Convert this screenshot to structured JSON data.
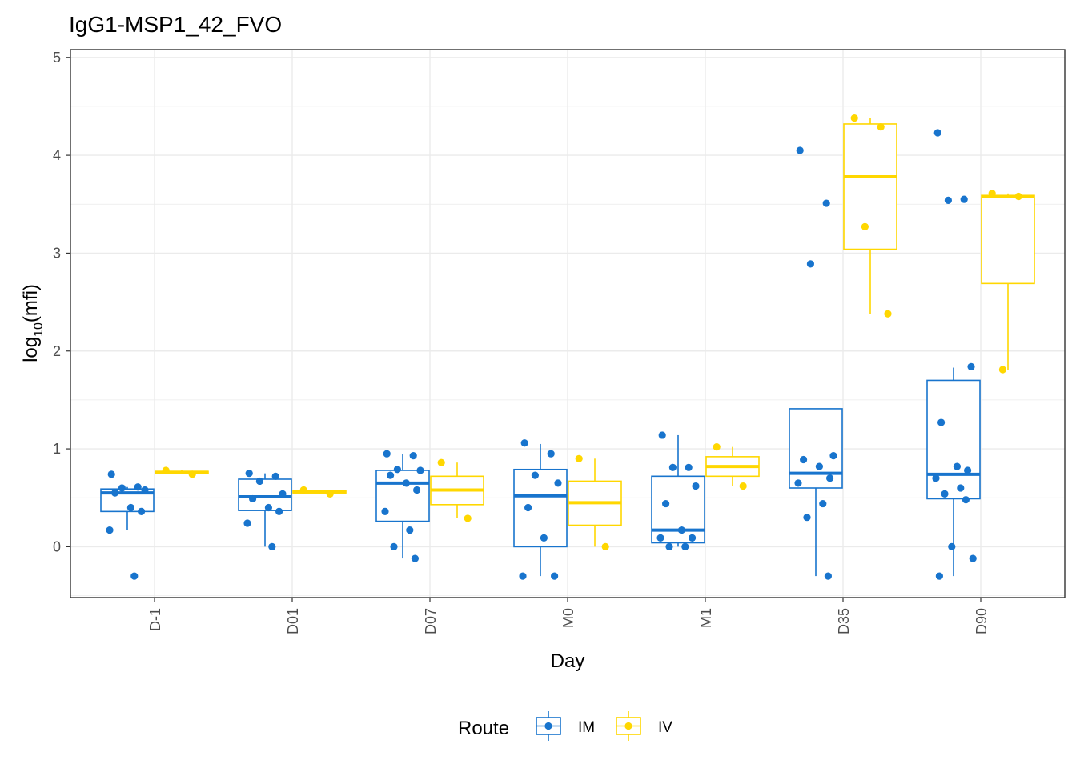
{
  "chart_data": {
    "type": "box",
    "title": "IgG1-MSP1_42_FVO",
    "xlabel": "Day",
    "ylabel": {
      "base": "log",
      "sub": "10",
      "rest": "(mfi)"
    },
    "categories": [
      "D-1",
      "D01",
      "D07",
      "M0",
      "M1",
      "D35",
      "D90"
    ],
    "ylim": [
      -0.52,
      5.08
    ],
    "yticks": [
      0,
      1,
      2,
      3,
      4,
      5
    ],
    "grid": true,
    "legend": {
      "title": "Route",
      "position": "bottom"
    },
    "series": [
      {
        "name": "IM",
        "color": "#1874CD",
        "boxes": [
          {
            "q1": 0.36,
            "median": 0.55,
            "q3": 0.59,
            "whisker_low": 0.17,
            "whisker_high": 0.61,
            "points": [
              0.74,
              0.61,
              0.6,
              0.58,
              0.55,
              0.4,
              0.36,
              0.17,
              -0.3
            ]
          },
          {
            "q1": 0.37,
            "median": 0.51,
            "q3": 0.69,
            "whisker_low": 0.0,
            "whisker_high": 0.75,
            "points": [
              0.75,
              0.72,
              0.67,
              0.54,
              0.49,
              0.4,
              0.36,
              0.24,
              0.0
            ]
          },
          {
            "q1": 0.26,
            "median": 0.65,
            "q3": 0.78,
            "whisker_low": -0.12,
            "whisker_high": 0.95,
            "points": [
              0.95,
              0.93,
              0.79,
              0.78,
              0.73,
              0.65,
              0.58,
              0.36,
              0.17,
              0.0,
              -0.12
            ]
          },
          {
            "q1": 0.0,
            "median": 0.52,
            "q3": 0.79,
            "whisker_low": -0.3,
            "whisker_high": 1.05,
            "points": [
              1.06,
              0.95,
              0.73,
              0.65,
              0.4,
              0.09,
              -0.3,
              -0.3
            ]
          },
          {
            "q1": 0.04,
            "median": 0.17,
            "q3": 0.72,
            "whisker_low": 0.0,
            "whisker_high": 1.14,
            "points": [
              1.14,
              0.81,
              0.81,
              0.62,
              0.44,
              0.17,
              0.09,
              0.09,
              0.0,
              0.0
            ]
          },
          {
            "q1": 0.6,
            "median": 0.75,
            "q3": 1.41,
            "whisker_low": -0.3,
            "whisker_high": 1.41,
            "points": [
              4.05,
              3.51,
              2.89,
              0.93,
              0.89,
              0.82,
              0.7,
              0.65,
              0.44,
              0.3,
              -0.3
            ]
          },
          {
            "q1": 0.49,
            "median": 0.74,
            "q3": 1.7,
            "whisker_low": -0.3,
            "whisker_high": 1.83,
            "points": [
              4.23,
              3.55,
              3.54,
              1.84,
              1.27,
              0.82,
              0.78,
              0.7,
              0.6,
              0.54,
              0.48,
              0.0,
              -0.12,
              -0.3
            ]
          }
        ]
      },
      {
        "name": "IV",
        "color": "#FFD700",
        "boxes": [
          {
            "q1": 0.75,
            "median": 0.76,
            "q3": 0.77,
            "whisker_low": 0.74,
            "whisker_high": 0.78,
            "points": [
              0.78,
              0.74
            ]
          },
          {
            "q1": 0.55,
            "median": 0.56,
            "q3": 0.57,
            "whisker_low": 0.54,
            "whisker_high": 0.58,
            "points": [
              0.58,
              0.54
            ]
          },
          {
            "q1": 0.43,
            "median": 0.58,
            "q3": 0.72,
            "whisker_low": 0.29,
            "whisker_high": 0.86,
            "points": [
              0.86,
              0.29
            ]
          },
          {
            "q1": 0.22,
            "median": 0.45,
            "q3": 0.67,
            "whisker_low": 0.0,
            "whisker_high": 0.9,
            "points": [
              0.9,
              0.0
            ]
          },
          {
            "q1": 0.72,
            "median": 0.82,
            "q3": 0.92,
            "whisker_low": 0.62,
            "whisker_high": 1.02,
            "points": [
              1.02,
              0.62
            ]
          },
          {
            "q1": 3.04,
            "median": 3.78,
            "q3": 4.32,
            "whisker_low": 2.38,
            "whisker_high": 4.38,
            "points": [
              4.38,
              4.29,
              3.27,
              2.38
            ]
          },
          {
            "q1": 2.69,
            "median": 3.58,
            "q3": 3.59,
            "whisker_low": 1.81,
            "whisker_high": 3.61,
            "points": [
              3.61,
              3.58,
              1.81
            ]
          }
        ]
      }
    ]
  }
}
